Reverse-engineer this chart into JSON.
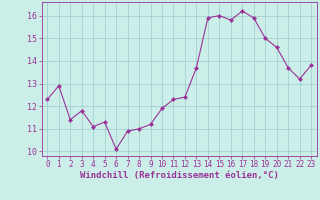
{
  "x": [
    0,
    1,
    2,
    3,
    4,
    5,
    6,
    7,
    8,
    9,
    10,
    11,
    12,
    13,
    14,
    15,
    16,
    17,
    18,
    19,
    20,
    21,
    22,
    23
  ],
  "y": [
    12.3,
    12.9,
    11.4,
    11.8,
    11.1,
    11.3,
    10.1,
    10.9,
    11.0,
    11.2,
    11.9,
    12.3,
    12.4,
    13.7,
    15.9,
    16.0,
    15.8,
    16.2,
    15.9,
    15.0,
    14.6,
    13.7,
    13.2,
    13.8
  ],
  "line_color": "#993399",
  "marker": "D",
  "marker_size": 2.5,
  "background_color": "#cceee8",
  "grid_color": "#99cccc",
  "xlabel": "Windchill (Refroidissement éolien,°C)",
  "xlabel_color": "#993399",
  "tick_color": "#993399",
  "ylim": [
    9.8,
    16.6
  ],
  "xlim": [
    -0.5,
    23.5
  ],
  "yticks": [
    10,
    11,
    12,
    13,
    14,
    15,
    16
  ],
  "xticks": [
    0,
    1,
    2,
    3,
    4,
    5,
    6,
    7,
    8,
    9,
    10,
    11,
    12,
    13,
    14,
    15,
    16,
    17,
    18,
    19,
    20,
    21,
    22,
    23
  ],
  "tick_fontsize": 5.5,
  "xlabel_fontsize": 6.5
}
